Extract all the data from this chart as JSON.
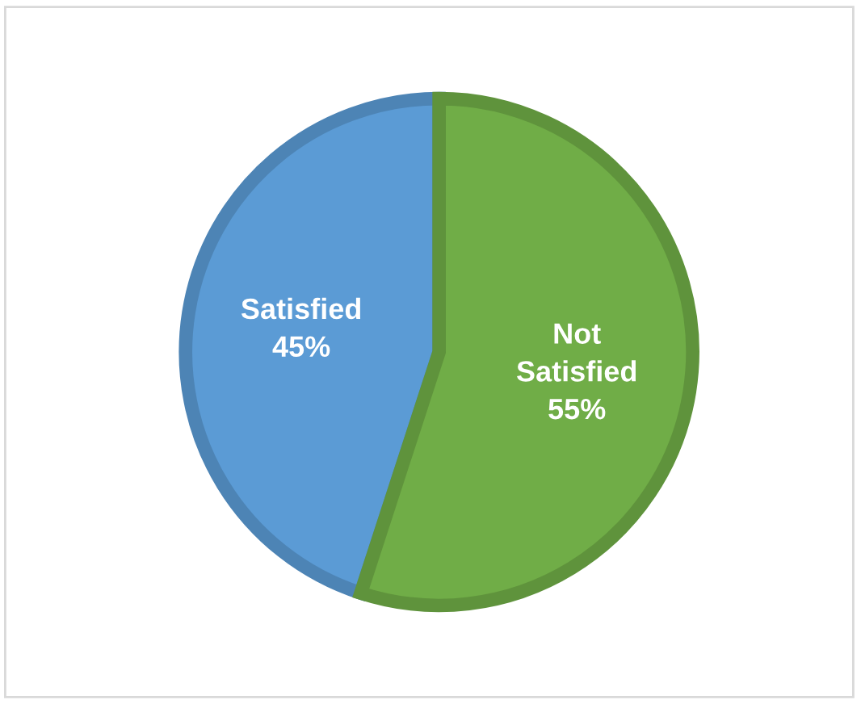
{
  "chart_data": {
    "type": "pie",
    "categories": [
      "Satisfied",
      "Not\nSatisfied"
    ],
    "values": [
      45,
      55
    ],
    "value_labels": [
      "45%",
      "55%"
    ],
    "colors": [
      "#5b9bd5",
      "#70ad47"
    ],
    "legend": false
  }
}
